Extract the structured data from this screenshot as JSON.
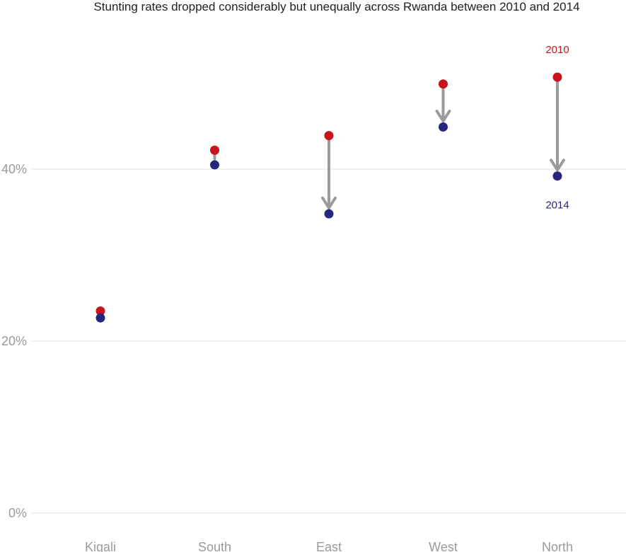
{
  "chart_data": {
    "type": "scatter",
    "title": "Stunting rates dropped considerably but unequally across Rwanda between 2010 and 2014",
    "categories": [
      "Kigali",
      "South",
      "East",
      "West",
      "North"
    ],
    "series": [
      {
        "name": "2010",
        "values": [
          23.5,
          42.2,
          43.9,
          49.9,
          50.7
        ]
      },
      {
        "name": "2014",
        "values": [
          22.7,
          40.5,
          34.8,
          44.9,
          39.2
        ]
      }
    ],
    "yticks": [
      0,
      20,
      40
    ],
    "yticklabels": [
      "0%",
      "20%",
      "40%"
    ],
    "ylim": [
      0,
      50
    ],
    "xlabel": "",
    "ylabel": "",
    "grid": true,
    "annotations": [
      {
        "text": "2010",
        "category": "North",
        "series": "2010"
      },
      {
        "text": "2014",
        "category": "North",
        "series": "2014"
      }
    ],
    "colors": {
      "2010": "#c8141c",
      "2014": "#262680",
      "arrow": "#9b9b9b"
    }
  }
}
